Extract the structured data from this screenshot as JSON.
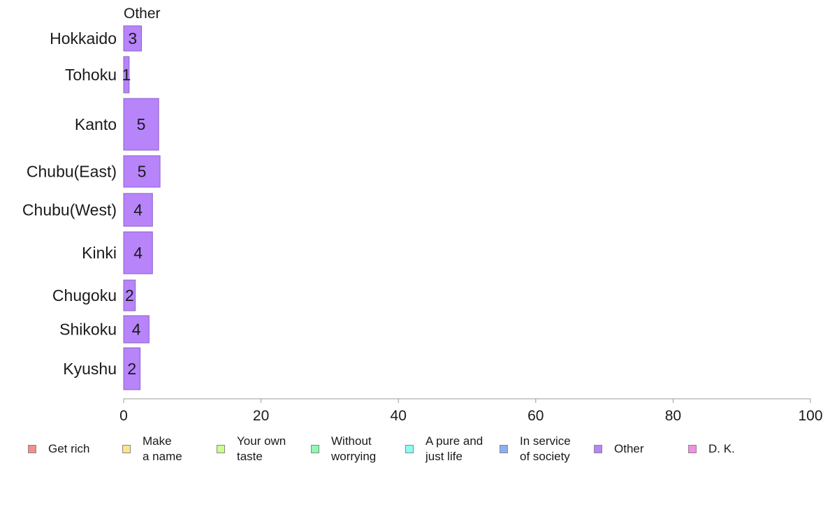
{
  "chart_data": {
    "type": "bar",
    "orientation": "horizontal",
    "title": "Other",
    "categories": [
      "Hokkaido",
      "Tohoku",
      "Kanto",
      "Chubu(East)",
      "Chubu(West)",
      "Kinki",
      "Chugoku",
      "Shikoku",
      "Kyushu"
    ],
    "series": [
      {
        "name": "Other",
        "values": [
          3,
          1,
          5,
          5,
          4,
          4,
          2,
          4,
          2
        ],
        "color": "#b784fa"
      }
    ],
    "data_labels": [
      "3",
      "1",
      "5",
      "5",
      "4",
      "4",
      "2",
      "4",
      "2"
    ],
    "bar_lengths": [
      2.6,
      0.8,
      5.1,
      5.3,
      4.2,
      4.2,
      1.7,
      3.7,
      2.4
    ],
    "xlim": [
      0,
      100
    ],
    "xticks": [
      "0",
      "20",
      "40",
      "60",
      "80",
      "100"
    ],
    "xlabel": "",
    "ylabel": "",
    "grid": false,
    "legend_position": "bottom",
    "legend": [
      {
        "label": "Get rich",
        "color": "#f58d8d"
      },
      {
        "label": "Make\na name",
        "color": "#fce58c"
      },
      {
        "label": "Your own\ntaste",
        "color": "#cdfc8c"
      },
      {
        "label": "Without\nworrying",
        "color": "#8cfcae"
      },
      {
        "label": "A pure and\njust life",
        "color": "#8cfcf4"
      },
      {
        "label": "In service\nof society",
        "color": "#8caef5"
      },
      {
        "label": "Other",
        "color": "#b784fa"
      },
      {
        "label": "D. K.",
        "color": "#f58ce6"
      }
    ]
  }
}
